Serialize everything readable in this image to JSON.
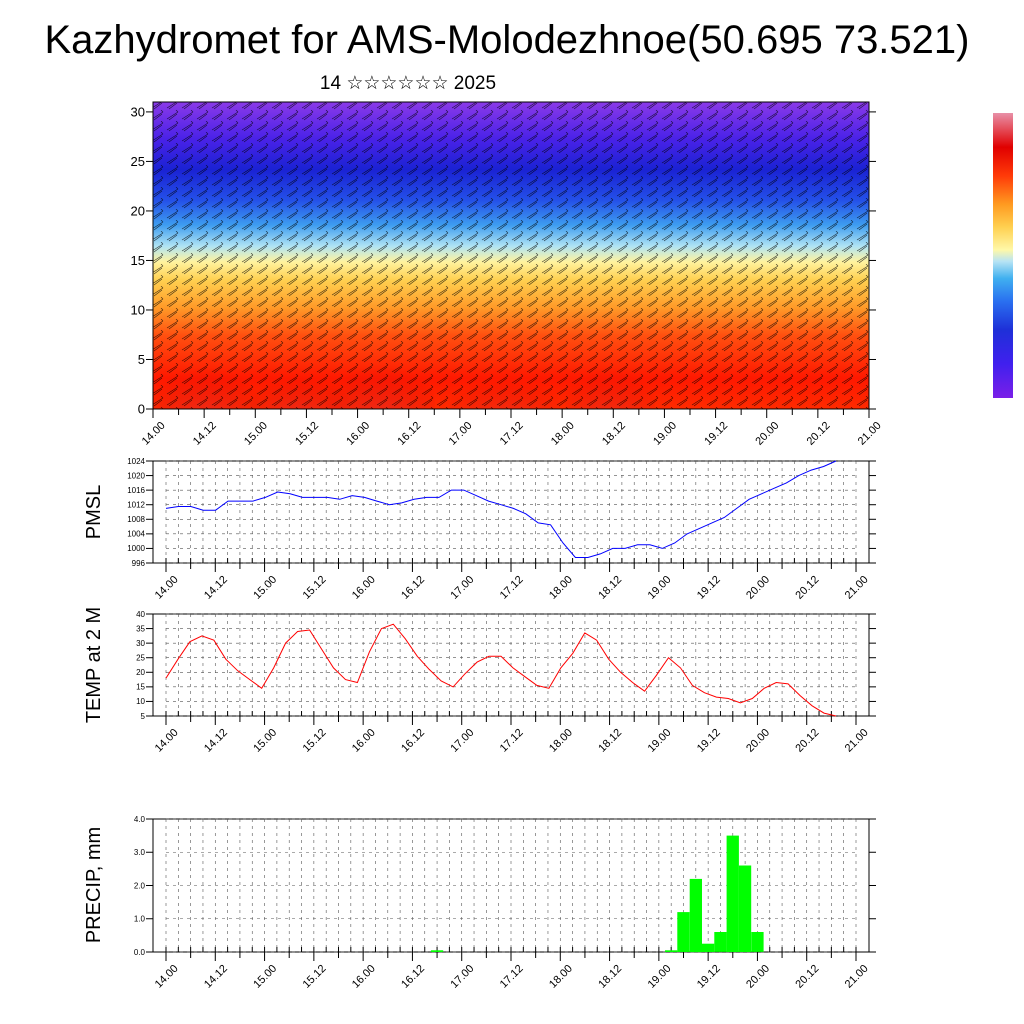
{
  "header": {
    "title": "Kazhydromet for AMS-Molodezhnoe(50.695 73.521)",
    "subtitle": "14 ☆☆☆☆☆☆ 2025"
  },
  "chart_data": [
    {
      "type": "heatmap",
      "title": "",
      "x_tick_labels": [
        "14.00",
        "14.12",
        "15.00",
        "15.12",
        "16.00",
        "16.12",
        "17.00",
        "17.12",
        "18.00",
        "18.12",
        "19.00",
        "19.12",
        "20.00",
        "20.12",
        "21.00"
      ],
      "y_ticks": [
        0,
        5,
        10,
        15,
        20,
        25,
        30
      ],
      "ylim": [
        0,
        31
      ],
      "overlay": "wind barbs",
      "color_scale": [
        "#7a1fe0",
        "#4b1ff0",
        "#1e28d8",
        "#2860f0",
        "#3aa0f0",
        "#9ad8f0",
        "#ffffc0",
        "#ffe070",
        "#ffb030",
        "#ff6010",
        "#ff1a00",
        "#e00000",
        "#e090a0"
      ]
    },
    {
      "type": "line",
      "ylabel": "PMSL",
      "ylim": [
        996,
        1024
      ],
      "y_ticks": [
        996,
        1000,
        1004,
        1008,
        1012,
        1016,
        1020,
        1024
      ],
      "x_tick_labels": [
        "14.00",
        "14.12",
        "15.00",
        "15.12",
        "16.00",
        "16.12",
        "17.00",
        "17.12",
        "18.00",
        "18.12",
        "19.00",
        "19.12",
        "20.00",
        "20.12",
        "21.00"
      ],
      "series": [
        {
          "color": "#0000ff",
          "values": [
            1011.0,
            1011.5,
            1011.5,
            1010.5,
            1010.5,
            1013.0,
            1013.0,
            1013.0,
            1014.0,
            1015.5,
            1015.0,
            1014.0,
            1014.0,
            1014.0,
            1013.5,
            1014.5,
            1014.0,
            1013.0,
            1012.0,
            1012.5,
            1013.5,
            1014.0,
            1014.0,
            1016.0,
            1016.0,
            1014.5,
            1013.0,
            1012.0,
            1011.0,
            1009.5,
            1007.0,
            1006.5,
            1001.5,
            997.5,
            997.5,
            998.5,
            1000.0,
            1000.0,
            1001.0,
            1001.0,
            1000.0,
            1001.5,
            1004.0,
            1005.5,
            1007.0,
            1008.5,
            1011.0,
            1013.5,
            1015.0,
            1016.5,
            1018.0,
            1020.0,
            1021.5,
            1022.5,
            1024.0
          ]
        }
      ]
    },
    {
      "type": "line",
      "ylabel": "TEMP at 2 M",
      "ylim": [
        5,
        40
      ],
      "y_ticks": [
        5,
        10,
        15,
        20,
        25,
        30,
        35,
        40
      ],
      "x_tick_labels": [
        "14.00",
        "14.12",
        "15.00",
        "15.12",
        "16.00",
        "16.12",
        "17.00",
        "17.12",
        "18.00",
        "18.12",
        "19.00",
        "19.12",
        "20.00",
        "20.12",
        "21.00"
      ],
      "series": [
        {
          "color": "#ff0000",
          "values": [
            18.0,
            24.5,
            30.5,
            32.5,
            31.0,
            24.5,
            20.5,
            17.5,
            14.5,
            21.5,
            30.0,
            34.0,
            34.5,
            28.0,
            21.5,
            17.5,
            16.5,
            27.0,
            35.0,
            36.5,
            31.5,
            25.5,
            21.0,
            17.0,
            15.0,
            19.5,
            23.5,
            25.5,
            25.5,
            21.5,
            18.5,
            15.5,
            14.5,
            21.5,
            26.5,
            33.5,
            31.0,
            24.5,
            20.0,
            16.5,
            13.5,
            19.0,
            25.0,
            21.5,
            15.5,
            13.0,
            11.5,
            11.0,
            9.5,
            11.0,
            14.5,
            16.5,
            16.0,
            12.0,
            8.5,
            6.0,
            5.0
          ]
        }
      ]
    },
    {
      "type": "bar",
      "ylabel": "PRECIP, mm",
      "ylim": [
        0,
        4
      ],
      "y_tick_labels": [
        "0.0",
        "1.0",
        "2.0",
        "3.0",
        "4.0"
      ],
      "x_tick_labels": [
        "14.00",
        "14.12",
        "15.00",
        "15.12",
        "16.00",
        "16.12",
        "17.00",
        "17.12",
        "18.00",
        "18.12",
        "19.00",
        "19.12",
        "20.00",
        "20.12",
        "21.00"
      ],
      "color": "#00ff00",
      "values": [
        0,
        0,
        0,
        0,
        0,
        0,
        0,
        0,
        0,
        0,
        0,
        0,
        0,
        0,
        0,
        0,
        0,
        0,
        0,
        0,
        0,
        0,
        0.05,
        0,
        0,
        0,
        0,
        0,
        0,
        0,
        0,
        0,
        0,
        0,
        0,
        0,
        0,
        0,
        0,
        0,
        0,
        0.05,
        1.2,
        2.2,
        0.25,
        0.6,
        3.5,
        2.6,
        0.6,
        0,
        0,
        0,
        0,
        0,
        0,
        0,
        0
      ]
    }
  ]
}
